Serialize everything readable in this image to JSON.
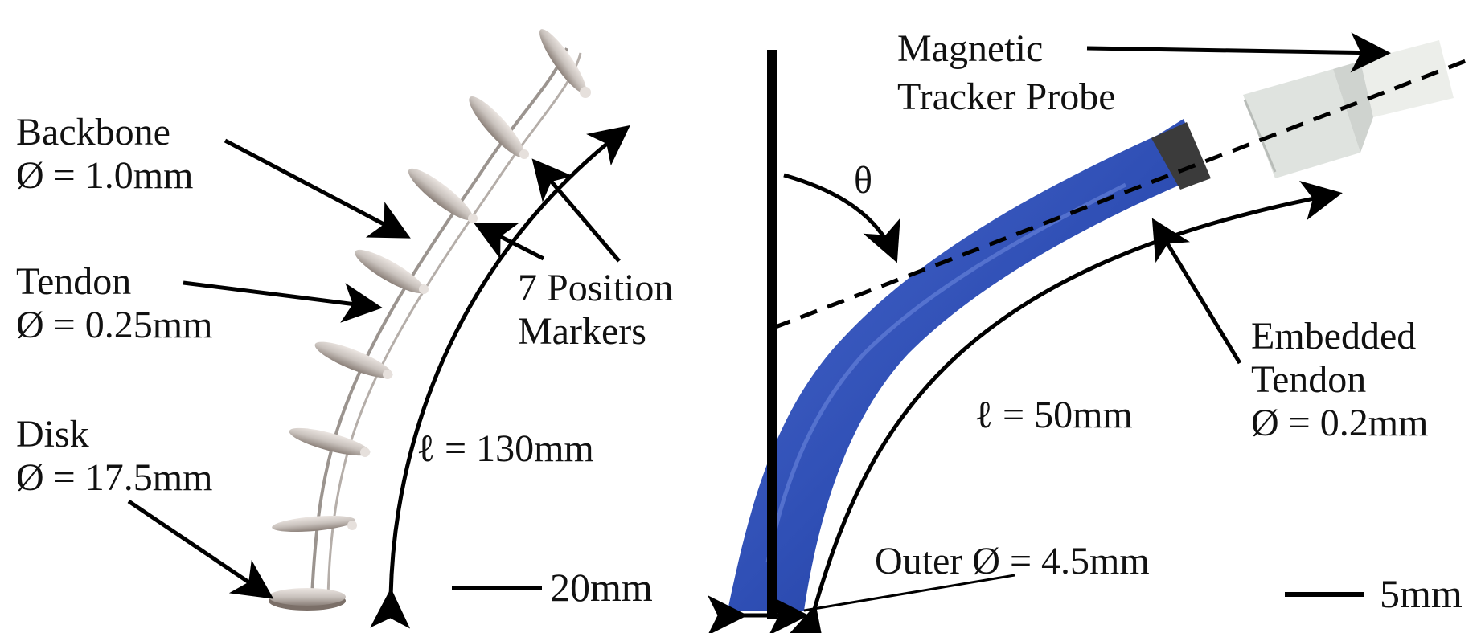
{
  "left_panel": {
    "backbone_label": [
      "Backbone",
      "Ø = 1.0mm"
    ],
    "tendon_label": [
      "Tendon",
      "Ø = 0.25mm"
    ],
    "disk_label": [
      "Disk",
      "Ø = 17.5mm"
    ],
    "markers_label": [
      "7 Position",
      "Markers"
    ],
    "length_label": "ℓ = 130mm",
    "scale_label": "20mm"
  },
  "right_panel": {
    "angle_label": "θ",
    "probe_label": [
      "Magnetic",
      "Tracker Probe"
    ],
    "embedded_tendon_label": [
      "Embedded",
      "Tendon",
      "Ø = 0.2mm"
    ],
    "length_label": "ℓ = 50mm",
    "outer_diameter_label": "Outer Ø = 4.5mm",
    "scale_label": "5mm"
  },
  "colors": {
    "tube_blue": "#2f4fb5",
    "tube_blue_dark": "#1c3390",
    "tube_highlight": "#6f8be0",
    "disk_metal": "#c9c2bd",
    "disk_dark": "#8a7f78",
    "probe_white": "#e9ece8",
    "band_dark": "#3b3b3b"
  }
}
